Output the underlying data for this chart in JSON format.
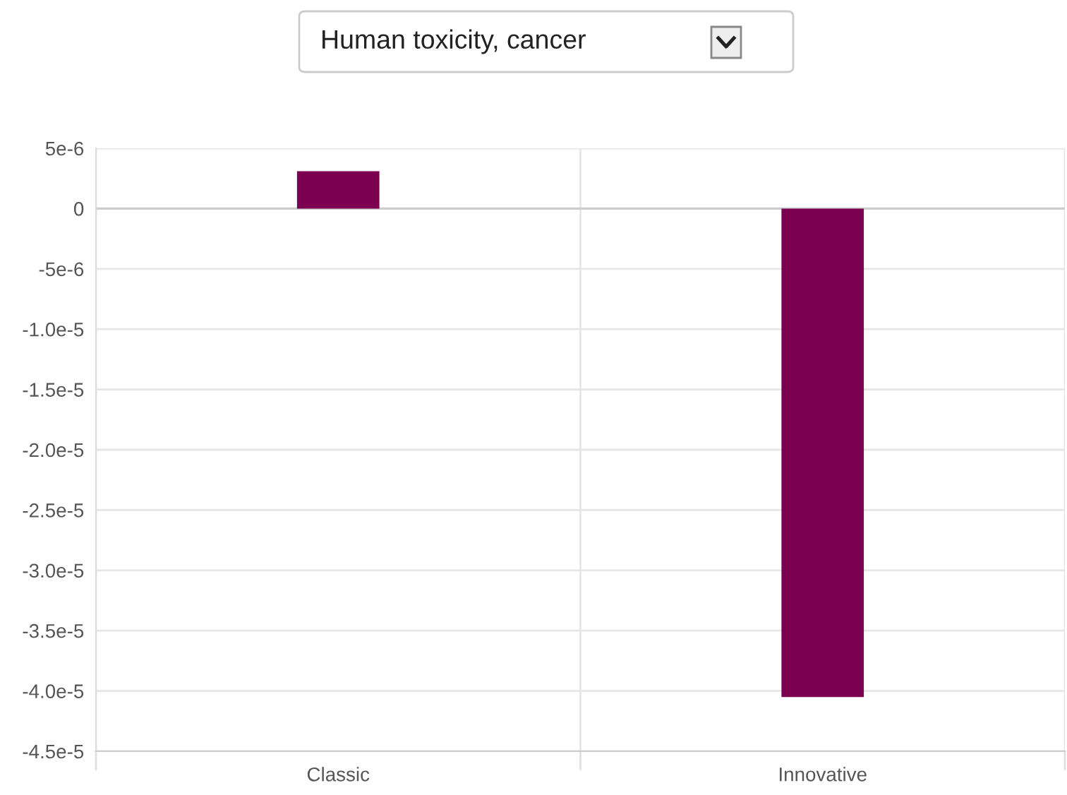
{
  "chart_data": {
    "type": "bar",
    "title": "Human toxicity, cancer",
    "categories": [
      "Classic",
      "Innovative"
    ],
    "values": [
      3.1e-06,
      -4.05e-05
    ],
    "color": "#7b0050",
    "ylim": [
      -4.5e-05,
      5e-06
    ],
    "yticks": [
      {
        "value": 5e-06,
        "label": "5e-6"
      },
      0,
      {
        "value": -5e-06,
        "label": "-5e-6"
      },
      {
        "value": -1e-05,
        "label": "-1.0e-5"
      },
      {
        "value": -1.5e-05,
        "label": "-1.5e-5"
      },
      {
        "value": -2e-05,
        "label": "-2.0e-5"
      },
      {
        "value": -2.5e-05,
        "label": "-2.5e-5"
      },
      {
        "value": -3e-05,
        "label": "-3.0e-5"
      },
      {
        "value": -3.5e-05,
        "label": "-3.5e-5"
      },
      {
        "value": -4e-05,
        "label": "-4.0e-5"
      },
      {
        "value": -4.5e-05,
        "label": "-4.5e-5"
      }
    ],
    "grid": true,
    "legend": false
  }
}
